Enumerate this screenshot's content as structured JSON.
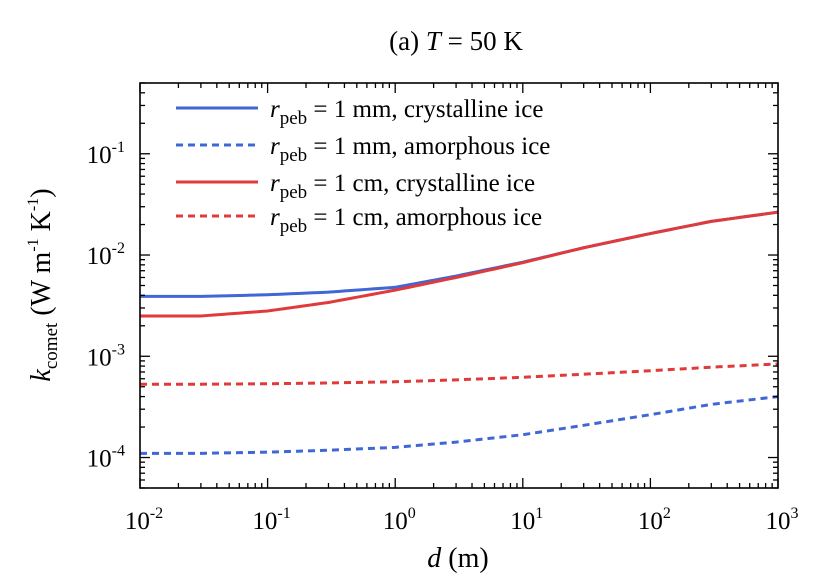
{
  "chart_data": {
    "type": "line",
    "title": {
      "prefix": "(a) ",
      "var": "T",
      "suffix": " = 50 K"
    },
    "xlabel": {
      "var": "d",
      "suffix": " (m)"
    },
    "ylabel": {
      "var": "k",
      "sub": "comet",
      "open": " (W m",
      "exp1": "-1",
      "mid": " K",
      "exp2": "-1",
      "close": ")"
    },
    "x_scale": "log",
    "y_scale": "log",
    "xlim": [
      0.01,
      1000
    ],
    "ylim": [
      5e-05,
      0.5
    ],
    "x_ticks": [
      {
        "value": 0.01,
        "base": "10",
        "exp": "-2"
      },
      {
        "value": 0.1,
        "base": "10",
        "exp": "-1"
      },
      {
        "value": 1,
        "base": "10",
        "exp": "0"
      },
      {
        "value": 10,
        "base": "10",
        "exp": "1"
      },
      {
        "value": 100,
        "base": "10",
        "exp": "2"
      },
      {
        "value": 1000,
        "base": "10",
        "exp": "3"
      }
    ],
    "y_ticks": [
      {
        "value": 0.0001,
        "base": "10",
        "exp": "-4"
      },
      {
        "value": 0.001,
        "base": "10",
        "exp": "-3"
      },
      {
        "value": 0.01,
        "base": "10",
        "exp": "-2"
      },
      {
        "value": 0.1,
        "base": "10",
        "exp": "-1"
      }
    ],
    "grid": false,
    "legend_position": "top-left",
    "series": [
      {
        "legend": {
          "var": "r",
          "sub": "peb",
          "text": " = 1 mm, crystalline ice"
        },
        "color": "#3f67d6",
        "dash": "solid",
        "x": [
          0.01,
          0.03,
          0.1,
          0.3,
          1,
          3,
          10,
          30,
          100,
          300,
          1000
        ],
        "y": [
          0.0039,
          0.0039,
          0.00405,
          0.0043,
          0.0048,
          0.0062,
          0.0085,
          0.0118,
          0.0163,
          0.0215,
          0.0265
        ]
      },
      {
        "legend": {
          "var": "r",
          "sub": "peb",
          "text": " = 1 mm, amorphous ice"
        },
        "color": "#3f67d6",
        "dash": "dashed",
        "x": [
          0.01,
          0.03,
          0.1,
          0.3,
          1,
          3,
          10,
          30,
          100,
          300,
          1000
        ],
        "y": [
          0.00011,
          0.00011,
          0.000113,
          0.000118,
          0.000126,
          0.000142,
          0.000168,
          0.000208,
          0.000265,
          0.000335,
          0.0004
        ]
      },
      {
        "legend": {
          "var": "r",
          "sub": "peb",
          "text": " = 1 cm, crystalline ice"
        },
        "color": "#e03a3a",
        "dash": "solid",
        "x": [
          0.01,
          0.03,
          0.1,
          0.3,
          1,
          3,
          10,
          30,
          100,
          300,
          1000
        ],
        "y": [
          0.0025,
          0.0025,
          0.0028,
          0.0034,
          0.0045,
          0.006,
          0.0084,
          0.0118,
          0.0163,
          0.0215,
          0.0265
        ]
      },
      {
        "legend": {
          "var": "r",
          "sub": "peb",
          "text": " = 1 cm, amorphous ice"
        },
        "color": "#e03a3a",
        "dash": "dashed",
        "x": [
          0.01,
          0.03,
          0.1,
          0.3,
          1,
          3,
          10,
          30,
          100,
          300,
          1000
        ],
        "y": [
          0.00053,
          0.00053,
          0.000535,
          0.000545,
          0.00056,
          0.000585,
          0.00062,
          0.000665,
          0.00072,
          0.00078,
          0.00084
        ]
      }
    ]
  }
}
